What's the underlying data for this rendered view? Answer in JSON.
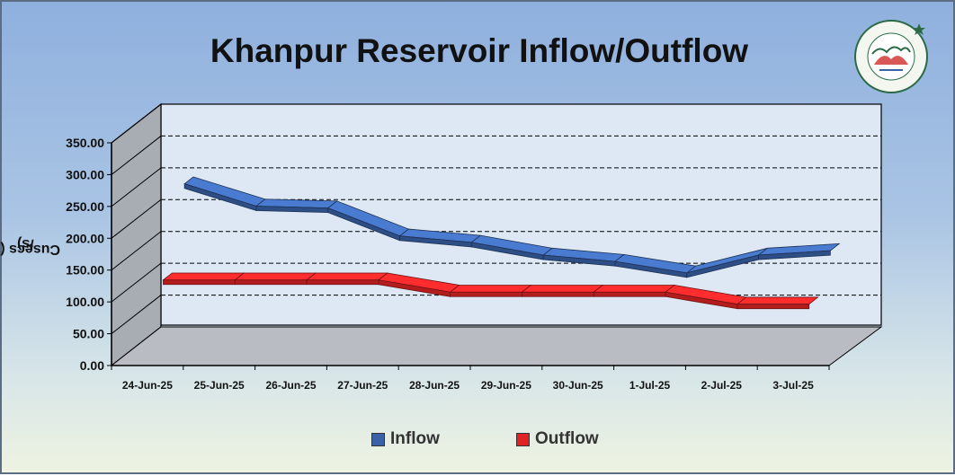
{
  "chart_data": {
    "type": "line",
    "title": "Khanpur Reservoir Inflow/Outflow",
    "ylabel": "Cusecs (ft³/s)",
    "ylabel_text": "Cusecs (ft",
    "ylabel_sup": "3",
    "ylabel_suffix": "/s)",
    "xlabel": "",
    "ylim": [
      0,
      350
    ],
    "yticks": [
      "0.00",
      "50.00",
      "100.00",
      "150.00",
      "200.00",
      "250.00",
      "300.00",
      "350.00"
    ],
    "categories": [
      "24-Jun-25",
      "25-Jun-25",
      "26-Jun-25",
      "27-Jun-25",
      "28-Jun-25",
      "29-Jun-25",
      "30-Jun-25",
      "1-Jul-25",
      "2-Jul-25",
      "3-Jul-25"
    ],
    "series": [
      {
        "name": "Inflow",
        "color": "#3a62a7",
        "values": [
          240,
          205,
          202,
          158,
          148,
          128,
          118,
          100,
          128,
          135
        ]
      },
      {
        "name": "Outflow",
        "color": "#e02424",
        "values": [
          115,
          115,
          115,
          115,
          96,
          96,
          96,
          96,
          77,
          77
        ]
      }
    ],
    "grid": true,
    "legend_position": "bottom"
  },
  "logo_text": "PAKISTAN METEOROLOGICAL DEPARTMENT"
}
